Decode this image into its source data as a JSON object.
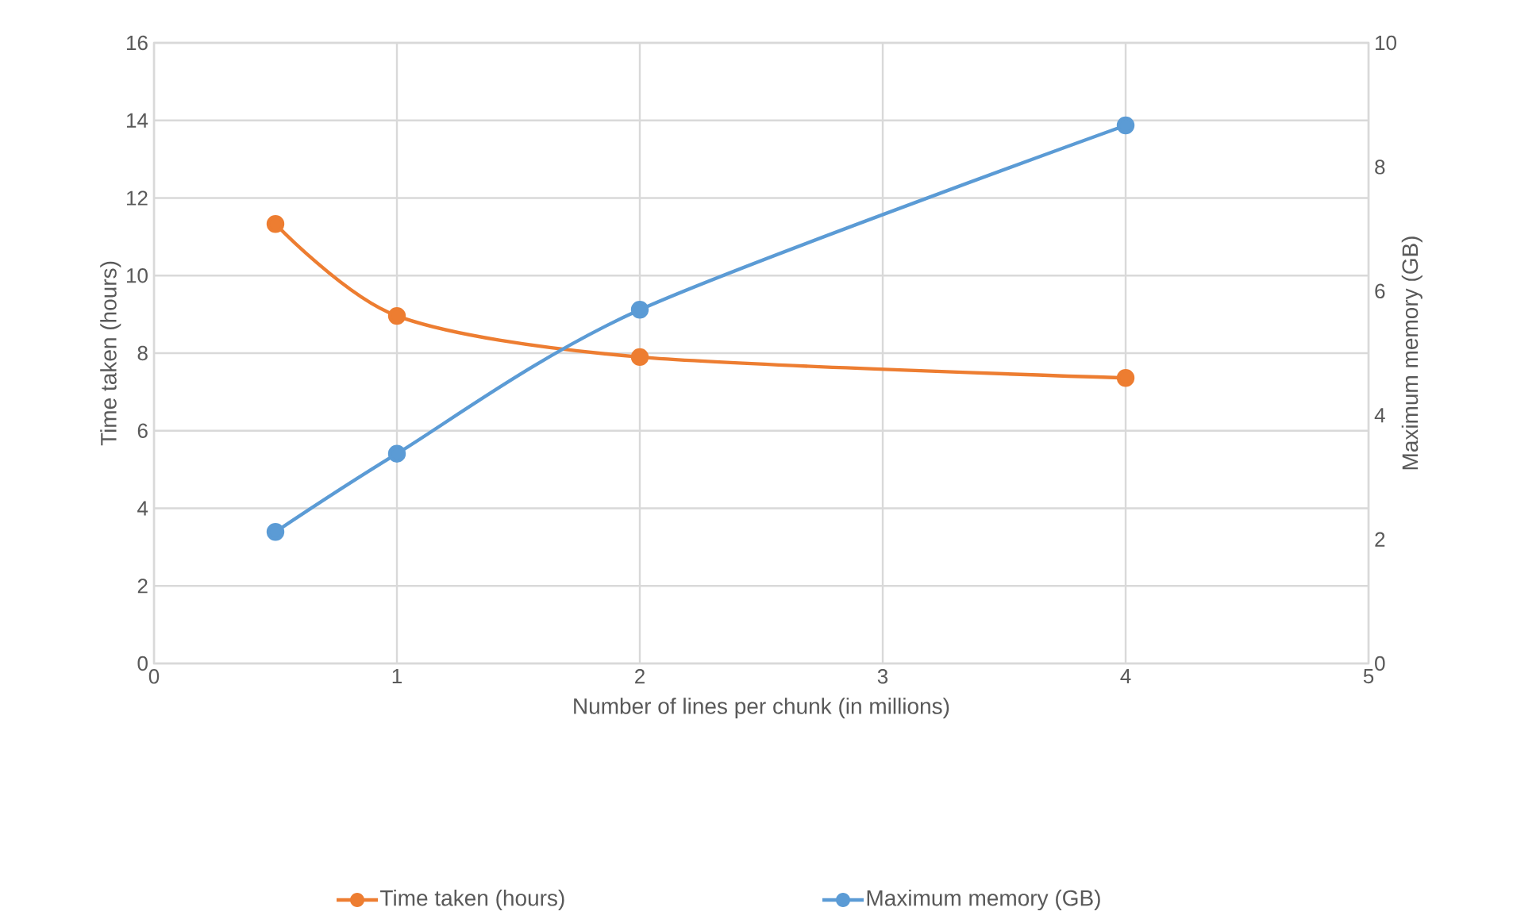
{
  "chart_data": {
    "type": "line",
    "xlabel": "Number of lines per chunk (in millions)",
    "ylabel": "Time taken (hours)",
    "y2label": "Maximum memory (GB)",
    "x": [
      0.5,
      1,
      2,
      4
    ],
    "series": [
      {
        "name": "Time taken (hours)",
        "color": "#ed7d31",
        "values": [
          11.33,
          8.96,
          7.9,
          7.36
        ]
      },
      {
        "name": "Maximum memory (GB)",
        "color": "#5b9bd5",
        "values": [
          2.12,
          3.38,
          5.7,
          8.67
        ],
        "axis": "y2"
      }
    ],
    "xlim": [
      0,
      5
    ],
    "xticks": [
      0,
      1,
      2,
      3,
      4,
      5
    ],
    "ylim": [
      0,
      16
    ],
    "yticks": [
      0,
      2,
      4,
      6,
      8,
      10,
      12,
      14,
      16
    ],
    "y2lim": [
      0,
      10
    ],
    "y2ticks": [
      0,
      2,
      4,
      6,
      8,
      10
    ],
    "grid": true,
    "legend": "bottom",
    "marker": "circle",
    "line_style": "solid"
  }
}
